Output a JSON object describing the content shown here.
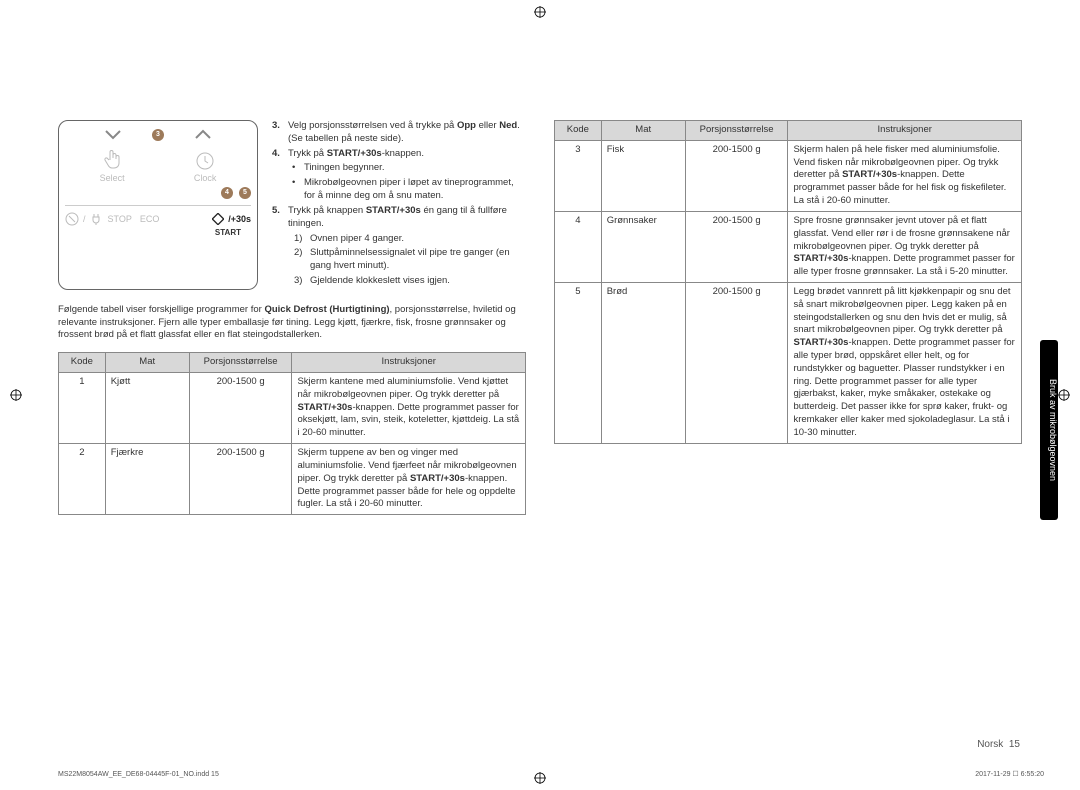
{
  "panel": {
    "select_label": "Select",
    "clock_label": "Clock",
    "stop_label": "STOP",
    "eco_label": "ECO",
    "start_label": "START",
    "plus30s": "/+30s",
    "callout3": "3",
    "callout4": "4",
    "callout5": "5"
  },
  "steps": {
    "s3_num": "3.",
    "s3": "Velg porsjonsstørrelsen ved å trykke på ",
    "s3_b1": "Opp",
    "s3_mid": " eller ",
    "s3_b2": "Ned",
    "s3_end": ". (Se tabellen på neste side).",
    "s4_num": "4.",
    "s4": "Trykk på ",
    "s4_b": "START/+30s",
    "s4_end": "-knappen.",
    "s4_sub1": "Tiningen begynner.",
    "s4_sub2": "Mikrobølgeovnen piper i løpet av tineprogrammet, for å minne deg om å snu maten.",
    "s5_num": "5.",
    "s5": "Trykk på knappen ",
    "s5_b": "START/+30s",
    "s5_end": " én gang til å fullføre tiningen.",
    "s5_sub1": "Ovnen piper 4 ganger.",
    "s5_sub2": "Sluttpåminnelsessignalet vil pipe tre ganger (en gang hvert minutt).",
    "s5_sub3": "Gjeldende klokkeslett vises igjen.",
    "bullet": "•",
    "n1": "1)",
    "n2": "2)",
    "n3": "3)"
  },
  "intro": {
    "t1": "Følgende tabell viser forskjellige programmer for ",
    "t1_b": "Quick Defrost (Hurtigtining)",
    "t1_end": ", porsjonsstørrelse, hviletid og relevante instruksjoner. Fjern alle typer emballasje før tining. Legg kjøtt, fjærkre, fisk, frosne grønnsaker og frossent brød på et flatt glassfat eller en flat steingodstallerken."
  },
  "table": {
    "h1": "Kode",
    "h2": "Mat",
    "h3": "Porsjonsstørrelse",
    "h4": "Instruksjoner",
    "col_widths": {
      "c1": "10%",
      "c2": "18%",
      "c3": "22%",
      "c4": "50%"
    }
  },
  "rows_left": [
    {
      "code": "1",
      "food": "Kjøtt",
      "size": "200-1500 g",
      "instr_pre": "Skjerm kantene med aluminiumsfolie. Vend kjøttet når mikrobølgeovnen piper. Og trykk deretter på ",
      "instr_b": "START/+30s",
      "instr_post": "-knappen. Dette programmet passer for oksekjøtt, lam, svin, steik, koteletter, kjøttdeig. La stå i 20-60 minutter."
    },
    {
      "code": "2",
      "food": "Fjærkre",
      "size": "200-1500 g",
      "instr_pre": "Skjerm tuppene av ben og vinger med aluminiumsfolie. Vend fjærfeet når mikrobølgeovnen piper. Og trykk deretter på ",
      "instr_b": "START/+30s",
      "instr_post": "-knappen. Dette programmet passer både for hele og oppdelte fugler. La stå i 20-60 minutter."
    }
  ],
  "rows_right": [
    {
      "code": "3",
      "food": "Fisk",
      "size": "200-1500 g",
      "instr_pre": "Skjerm halen på hele fisker med aluminiumsfolie. Vend fisken når mikrobølgeovnen piper. Og trykk deretter på ",
      "instr_b": "START/+30s",
      "instr_post": "-knappen. Dette programmet passer både for hel fisk og fiskefileter. La stå i 20-60 minutter."
    },
    {
      "code": "4",
      "food": "Grønnsaker",
      "size": "200-1500 g",
      "instr_pre": "Spre frosne grønnsaker jevnt utover på et flatt glassfat. Vend eller rør i de frosne grønnsakene når mikrobølgeovnen piper. Og trykk deretter på ",
      "instr_b": "START/+30s",
      "instr_post": "-knappen. Dette programmet passer for alle typer frosne grønnsaker. La stå i 5-20 minutter."
    },
    {
      "code": "5",
      "food": "Brød",
      "size": "200-1500 g",
      "instr_pre": "Legg brødet vannrett på litt kjøkkenpapir og snu det så snart mikrobølgeovnen piper. Legg kaken på en steingodstallerken og snu den hvis det er mulig, så snart mikrobølgeovnen piper. Og trykk deretter på ",
      "instr_b": "START/+30s",
      "instr_post": "-knappen. Dette programmet passer for alle typer brød, oppskåret eller helt, og for rundstykker og baguetter. Plasser rundstykker i en ring. Dette programmet passer for alle typer gjærbakst, kaker, myke småkaker, ostekake og butterdeig. Det passer ikke for sprø kaker, frukt- og kremkaker eller kaker med sjokoladeglasur. La stå i 10-30 minutter."
    }
  ],
  "sidetab": "Bruk av mikrobølgeovnen",
  "footer": {
    "lang": "Norsk",
    "pagenum": "15",
    "file": "MS22M8054AW_EE_DE68-04445F-01_NO.indd   15",
    "date": "2017-11-29   ☐ 6:55:20"
  }
}
